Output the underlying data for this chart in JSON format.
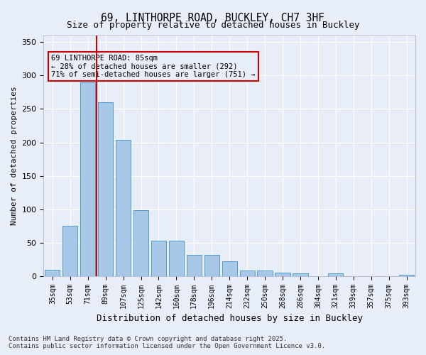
{
  "title_line1": "69, LINTHORPE ROAD, BUCKLEY, CH7 3HF",
  "title_line2": "Size of property relative to detached houses in Buckley",
  "xlabel": "Distribution of detached houses by size in Buckley",
  "ylabel": "Number of detached properties",
  "categories": [
    "35sqm",
    "53sqm",
    "71sqm",
    "89sqm",
    "107sqm",
    "125sqm",
    "142sqm",
    "160sqm",
    "178sqm",
    "196sqm",
    "214sqm",
    "232sqm",
    "250sqm",
    "268sqm",
    "286sqm",
    "304sqm",
    "321sqm",
    "339sqm",
    "357sqm",
    "375sqm",
    "393sqm"
  ],
  "values": [
    9,
    75,
    290,
    260,
    204,
    99,
    53,
    53,
    32,
    32,
    22,
    8,
    8,
    5,
    4,
    0,
    4,
    0,
    0,
    0,
    2
  ],
  "bar_color": "#a8c8e8",
  "bar_edge_color": "#5599cc",
  "vline_x": 2.5,
  "vline_color": "#cc0000",
  "annotation_text": "69 LINTHORPE ROAD: 85sqm\n← 28% of detached houses are smaller (292)\n71% of semi-detached houses are larger (751) →",
  "annotation_box_color": "#cc0000",
  "ylim": [
    0,
    360
  ],
  "yticks": [
    0,
    50,
    100,
    150,
    200,
    250,
    300,
    350
  ],
  "background_color": "#e8eef8",
  "grid_color": "#ffffff",
  "footnote": "Contains HM Land Registry data © Crown copyright and database right 2025.\nContains public sector information licensed under the Open Government Licence v3.0."
}
